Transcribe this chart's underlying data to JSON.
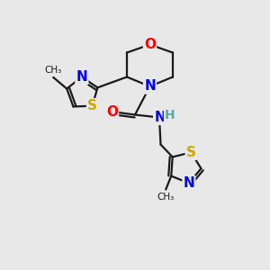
{
  "bg_color": "#e8e8e8",
  "bond_color": "#1a1a1a",
  "atom_colors": {
    "N": "#0000ff",
    "O": "#ff0000",
    "S": "#ccaa00",
    "C": "#1a1a1a",
    "H": "#5fa8a8"
  }
}
